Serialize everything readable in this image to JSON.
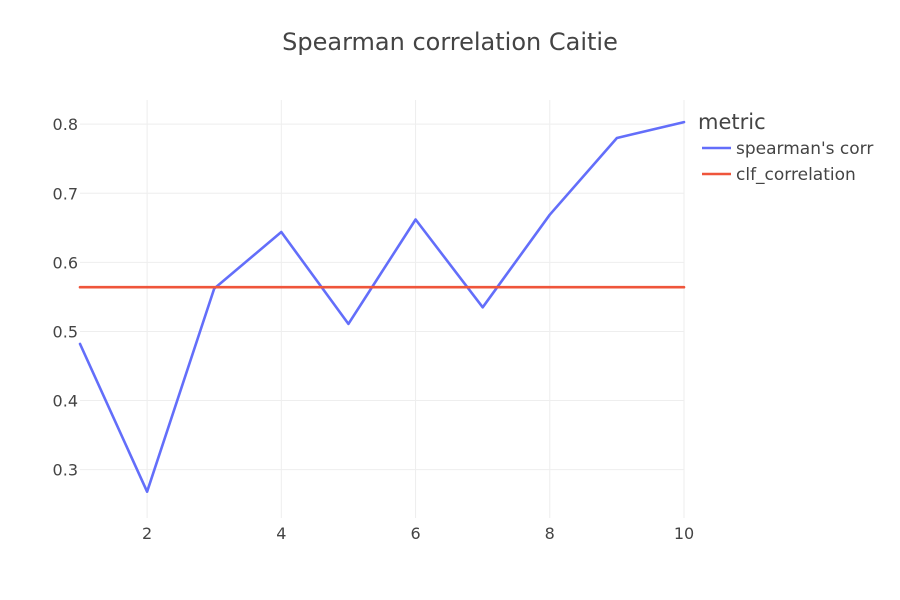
{
  "chart_data": {
    "type": "line",
    "title": "Spearman correlation Caitie",
    "xlabel": "",
    "ylabel": "",
    "x": [
      1,
      2,
      3,
      4,
      5,
      6,
      7,
      8,
      9,
      10
    ],
    "xlim": [
      1,
      10
    ],
    "ylim": [
      0.23,
      0.835
    ],
    "x_ticks": [
      2,
      4,
      6,
      8,
      10
    ],
    "x_tick_labels": [
      "2",
      "4",
      "6",
      "8",
      "10"
    ],
    "y_ticks": [
      0.3,
      0.4,
      0.5,
      0.6,
      0.7,
      0.8
    ],
    "y_tick_labels": [
      "0.3",
      "0.4",
      "0.5",
      "0.6",
      "0.7",
      "0.8"
    ],
    "grid": true,
    "legend": {
      "title": "metric",
      "placement": "top-right, outside plot"
    },
    "series": [
      {
        "name": "spearman's corr",
        "color": "#636efa",
        "values": [
          0.482,
          0.268,
          0.562,
          0.644,
          0.511,
          0.662,
          0.535,
          0.669,
          0.78,
          0.803
        ]
      },
      {
        "name": "clf_correlation",
        "color": "#ef553b",
        "values": [
          0.564,
          0.564,
          0.564,
          0.564,
          0.564,
          0.564,
          0.564,
          0.564,
          0.564,
          0.564
        ]
      }
    ]
  }
}
